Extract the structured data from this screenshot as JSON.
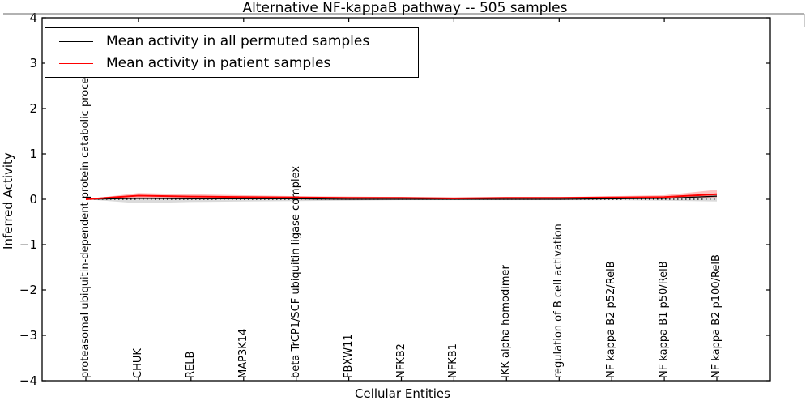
{
  "figure": {
    "title": "Alternative NF-kappaB pathway -- 505 samples",
    "xlabel": "Cellular Entities",
    "ylabel": "Inferred Activity"
  },
  "legend": {
    "entries": [
      {
        "label": "Mean activity in all permuted samples",
        "color": "#000000"
      },
      {
        "label": "Mean activity in patient samples",
        "color": "#ff0000"
      }
    ]
  },
  "chart_data": {
    "type": "line",
    "title": "Alternative NF-kappaB pathway -- 505 samples",
    "xlabel": "Cellular Entities",
    "ylabel": "Inferred Activity",
    "ylim": [
      -4,
      4
    ],
    "yticks": [
      4,
      3,
      2,
      1,
      0,
      -1,
      -2,
      -3,
      -4
    ],
    "grid": false,
    "legend_position": "upper left",
    "zero_line_style": "dotted",
    "top_tick_indices": [
      1,
      3,
      5,
      7,
      9,
      11
    ],
    "categories": [
      "proteasomal ubiquitin-dependent protein catabolic process",
      "CHUK",
      "RELB",
      "MAP3K14",
      "beta TrCP1/SCF ubiquitin ligase complex",
      "FBXW11",
      "NFKB2",
      "NFKB1",
      "IKK alpha homodimer",
      "regulation of B cell activation",
      "NF kappa B2 p52/RelB",
      "NF kappa B1 p50/RelB",
      "NF kappa B2 p100/RelB"
    ],
    "series": [
      {
        "name": "Mean activity in all permuted samples",
        "color": "#000000",
        "band_color": "rgba(0,0,0,0.14)",
        "values": [
          0.0,
          0.02,
          0.01,
          0.01,
          0.01,
          0.0,
          0.0,
          0.0,
          0.0,
          0.0,
          0.01,
          0.02,
          0.07
        ],
        "band_upper": [
          0.0,
          0.05,
          0.04,
          0.03,
          0.03,
          0.02,
          0.02,
          0.02,
          0.02,
          0.02,
          0.02,
          0.03,
          0.09
        ],
        "band_lower": [
          0.0,
          -0.09,
          -0.06,
          -0.05,
          -0.04,
          -0.03,
          -0.02,
          -0.02,
          -0.02,
          -0.02,
          -0.02,
          -0.03,
          -0.05
        ]
      },
      {
        "name": "Mean activity in patient samples",
        "color": "#ff0000",
        "band_color": "rgba(255,0,0,0.25)",
        "values": [
          0.0,
          0.08,
          0.06,
          0.05,
          0.04,
          0.03,
          0.03,
          0.02,
          0.03,
          0.03,
          0.04,
          0.05,
          0.11
        ],
        "band_upper": [
          0.0,
          0.14,
          0.11,
          0.09,
          0.07,
          0.06,
          0.05,
          0.04,
          0.05,
          0.05,
          0.07,
          0.09,
          0.21
        ],
        "band_lower": [
          0.0,
          0.03,
          0.02,
          0.01,
          0.01,
          0.0,
          0.0,
          0.0,
          0.0,
          0.0,
          0.01,
          0.02,
          0.04
        ]
      }
    ]
  }
}
